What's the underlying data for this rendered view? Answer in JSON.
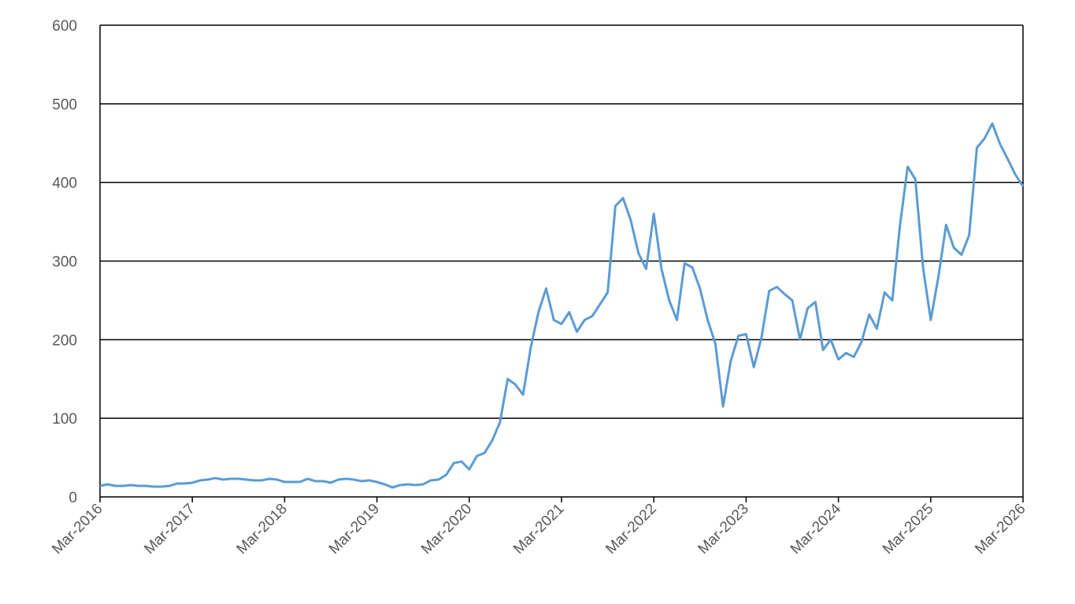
{
  "chart_data": {
    "type": "line",
    "x": [
      "2016-03",
      "2016-04",
      "2016-05",
      "2016-06",
      "2016-07",
      "2016-08",
      "2016-09",
      "2016-10",
      "2016-11",
      "2016-12",
      "2017-01",
      "2017-02",
      "2017-03",
      "2017-04",
      "2017-05",
      "2017-06",
      "2017-07",
      "2017-08",
      "2017-09",
      "2017-10",
      "2017-11",
      "2017-12",
      "2018-01",
      "2018-02",
      "2018-03",
      "2018-04",
      "2018-05",
      "2018-06",
      "2018-07",
      "2018-08",
      "2018-09",
      "2018-10",
      "2018-11",
      "2018-12",
      "2019-01",
      "2019-02",
      "2019-03",
      "2019-04",
      "2019-05",
      "2019-06",
      "2019-07",
      "2019-08",
      "2019-09",
      "2019-10",
      "2019-11",
      "2019-12",
      "2020-01",
      "2020-02",
      "2020-03",
      "2020-04",
      "2020-05",
      "2020-06",
      "2020-07",
      "2020-08",
      "2020-09",
      "2020-10",
      "2020-11",
      "2020-12",
      "2021-01",
      "2021-02",
      "2021-03",
      "2021-04",
      "2021-05",
      "2021-06",
      "2021-07",
      "2021-08",
      "2021-09",
      "2021-10",
      "2021-11",
      "2021-12",
      "2022-01",
      "2022-02",
      "2022-03",
      "2022-04",
      "2022-05",
      "2022-06",
      "2022-07",
      "2022-08",
      "2022-09",
      "2022-10",
      "2022-11",
      "2022-12",
      "2023-01",
      "2023-02",
      "2023-03",
      "2023-04",
      "2023-05",
      "2023-06",
      "2023-07",
      "2023-08",
      "2023-09",
      "2023-10",
      "2023-11",
      "2023-12",
      "2024-01",
      "2024-02",
      "2024-03",
      "2024-04",
      "2024-05",
      "2024-06",
      "2024-07",
      "2024-08",
      "2024-09",
      "2024-10",
      "2024-11",
      "2024-12",
      "2025-01",
      "2025-02",
      "2025-03",
      "2025-04",
      "2025-05",
      "2025-06",
      "2025-07",
      "2025-08",
      "2025-09",
      "2025-10",
      "2025-11",
      "2025-12",
      "2026-01",
      "2026-02",
      "2026-03"
    ],
    "series": [
      {
        "color": "#5b9bd5",
        "values": [
          14,
          16,
          14,
          14,
          15,
          14,
          14,
          13,
          13,
          14,
          17,
          17,
          18,
          21,
          22,
          24,
          22,
          23,
          23,
          22,
          21,
          21,
          23,
          22,
          19,
          19,
          19,
          23,
          20,
          20,
          18,
          22,
          23,
          22,
          20,
          21,
          19,
          16,
          12,
          15,
          16,
          15,
          16,
          21,
          22,
          28,
          43,
          45,
          35,
          52,
          56,
          72,
          95,
          150,
          143,
          130,
          190,
          235,
          265,
          225,
          220,
          235,
          210,
          225,
          230,
          245,
          260,
          370,
          380,
          352,
          310,
          290,
          360,
          290,
          250,
          225,
          297,
          292,
          265,
          225,
          195,
          115,
          173,
          205,
          207,
          165,
          203,
          262,
          267,
          258,
          250,
          200,
          240,
          248,
          187,
          200,
          175,
          183,
          178,
          197,
          232,
          214,
          260,
          250,
          345,
          420,
          404,
          292,
          225,
          280,
          346,
          317,
          308,
          333,
          444,
          456,
          475,
          449,
          430,
          410,
          395
        ]
      }
    ],
    "xlim": [
      "2016-03",
      "2026-03"
    ],
    "xticks": [
      {
        "value": "2016-03",
        "label": "Mar-2016"
      },
      {
        "value": "2017-03",
        "label": "Mar-2017"
      },
      {
        "value": "2018-03",
        "label": "Mar-2018"
      },
      {
        "value": "2019-03",
        "label": "Mar-2019"
      },
      {
        "value": "2020-03",
        "label": "Mar-2020"
      },
      {
        "value": "2021-03",
        "label": "Mar-2021"
      },
      {
        "value": "2022-03",
        "label": "Mar-2022"
      },
      {
        "value": "2023-03",
        "label": "Mar-2023"
      },
      {
        "value": "2024-03",
        "label": "Mar-2024"
      },
      {
        "value": "2025-03",
        "label": "Mar-2025"
      },
      {
        "value": "2026-03",
        "label": "Mar-2026"
      }
    ],
    "ylim": [
      0,
      600
    ],
    "yticks": [
      0,
      100,
      200,
      300,
      400,
      500,
      600
    ],
    "grid": true
  }
}
